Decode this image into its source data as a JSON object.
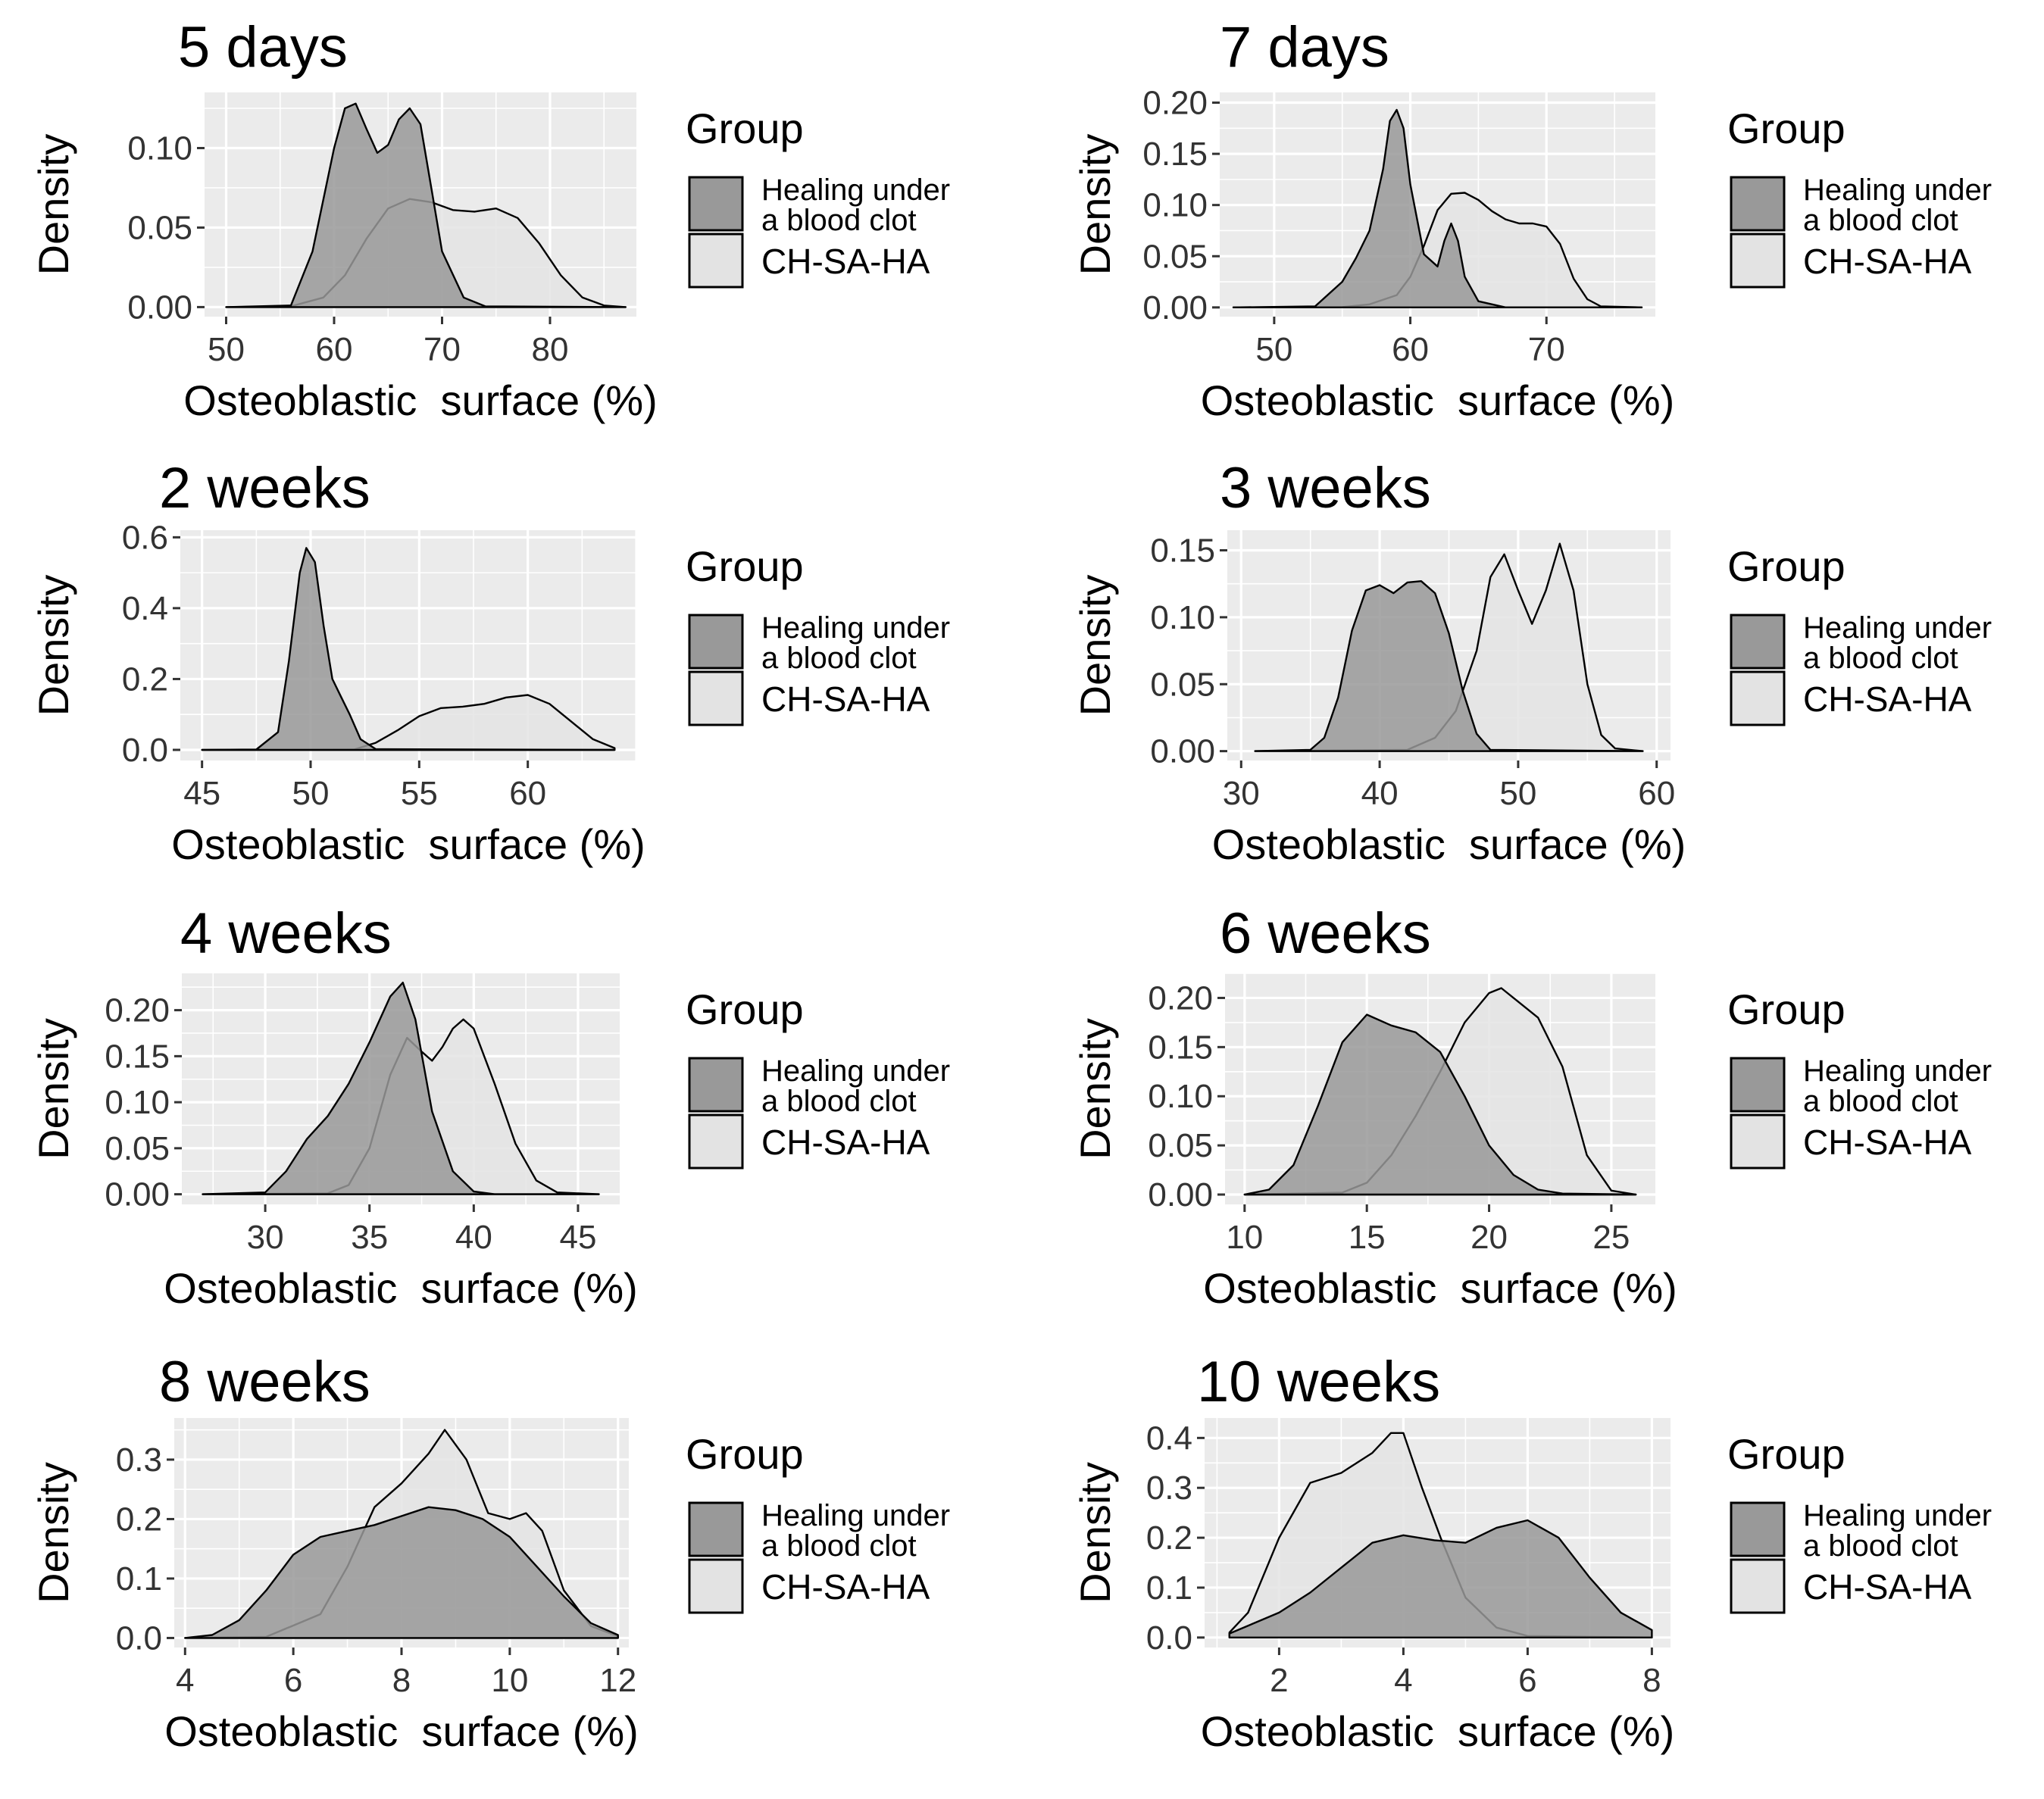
{
  "figure": {
    "legend_title": "Group",
    "group_labels": [
      "Healing under a blood clot",
      "CH-SA-HA"
    ],
    "group_label_lines": [
      [
        "Healing under",
        "a blood clot"
      ],
      [
        "CH-SA-HA"
      ]
    ],
    "colors": {
      "panel_bg": "#ebebeb",
      "grid": "#ffffff",
      "healing_fill": "#999999",
      "chsaha_fill": "#e3e3e3",
      "line": "#000000"
    }
  },
  "chart_data": [
    {
      "type": "area",
      "title": "5 days",
      "xlabel": "Osteoblastic  surface (%)",
      "ylabel": "Density",
      "xlim": [
        48,
        88
      ],
      "ylim": [
        -0.006,
        0.135
      ],
      "xticks": [
        50,
        60,
        70,
        80
      ],
      "xtick_labels": [
        "50",
        "60",
        "70",
        "80"
      ],
      "yticks": [
        0,
        0.05,
        0.1
      ],
      "ytick_labels": [
        "0.00",
        "0.05",
        "0.10"
      ],
      "legend_position": "right",
      "series": [
        {
          "name": "CH-SA-HA",
          "x": [
            50,
            56,
            59,
            61,
            63,
            65,
            67,
            69,
            71,
            73,
            75,
            77,
            79,
            81,
            83,
            85,
            87
          ],
          "y": [
            0,
            0.0005,
            0.006,
            0.02,
            0.043,
            0.062,
            0.068,
            0.066,
            0.061,
            0.06,
            0.062,
            0.056,
            0.04,
            0.02,
            0.006,
            0.001,
            0
          ]
        },
        {
          "name": "Healing under a blood clot",
          "x": [
            50,
            56,
            58,
            60,
            61,
            62,
            63,
            64,
            65,
            66,
            67,
            68,
            69,
            70,
            72,
            74,
            87
          ],
          "y": [
            0,
            0.001,
            0.035,
            0.1,
            0.125,
            0.128,
            0.112,
            0.097,
            0.102,
            0.118,
            0.125,
            0.115,
            0.075,
            0.035,
            0.006,
            0.0005,
            0
          ]
        }
      ]
    },
    {
      "type": "area",
      "title": "7 days",
      "xlabel": "Osteoblastic  surface (%)",
      "ylabel": "Density",
      "xlim": [
        46,
        78
      ],
      "ylim": [
        -0.009,
        0.21
      ],
      "xticks": [
        50,
        60,
        70
      ],
      "xtick_labels": [
        "50",
        "60",
        "70"
      ],
      "yticks": [
        0,
        0.05,
        0.1,
        0.15,
        0.2
      ],
      "ytick_labels": [
        "0.00",
        "0.05",
        "0.10",
        "0.15",
        "0.20"
      ],
      "legend_position": "right",
      "series": [
        {
          "name": "CH-SA-HA",
          "x": [
            47,
            55,
            57,
            59,
            60,
            61,
            62,
            63,
            64,
            65,
            66,
            67,
            68,
            69,
            70,
            71,
            72,
            73,
            74,
            77
          ],
          "y": [
            0,
            0.0003,
            0.003,
            0.012,
            0.03,
            0.06,
            0.095,
            0.111,
            0.112,
            0.105,
            0.094,
            0.086,
            0.082,
            0.082,
            0.079,
            0.062,
            0.028,
            0.008,
            0.001,
            0
          ]
        },
        {
          "name": "Healing under a blood clot",
          "x": [
            47,
            53,
            55,
            56,
            57,
            58,
            58.5,
            59,
            59.5,
            60,
            61,
            62,
            62.5,
            63,
            63.5,
            64,
            65,
            67,
            77
          ],
          "y": [
            0,
            0.001,
            0.025,
            0.048,
            0.075,
            0.135,
            0.182,
            0.193,
            0.175,
            0.12,
            0.052,
            0.04,
            0.065,
            0.082,
            0.065,
            0.03,
            0.006,
            0,
            0
          ]
        }
      ]
    },
    {
      "type": "area",
      "title": "2 weeks",
      "xlabel": "Osteoblastic  surface (%)",
      "ylabel": "Density",
      "xlim": [
        44,
        65
      ],
      "ylim": [
        -0.03,
        0.62
      ],
      "xticks": [
        45,
        50,
        55,
        60
      ],
      "xtick_labels": [
        "45",
        "50",
        "55",
        "60"
      ],
      "yticks": [
        0,
        0.2,
        0.4,
        0.6
      ],
      "ytick_labels": [
        "0.0",
        "0.2",
        "0.4",
        "0.6"
      ],
      "legend_position": "right",
      "series": [
        {
          "name": "CH-SA-HA",
          "x": [
            45,
            52,
            53,
            54,
            55,
            56,
            57,
            58,
            59,
            60,
            61,
            62,
            63,
            64
          ],
          "y": [
            0,
            0.001,
            0.02,
            0.055,
            0.095,
            0.118,
            0.122,
            0.13,
            0.148,
            0.155,
            0.13,
            0.08,
            0.03,
            0.005
          ]
        },
        {
          "name": "Healing under a blood clot",
          "x": [
            45,
            47.5,
            48.5,
            49,
            49.5,
            49.8,
            50.2,
            50.6,
            51,
            51.4,
            51.8,
            52.3,
            53,
            64
          ],
          "y": [
            0,
            0.001,
            0.05,
            0.25,
            0.5,
            0.57,
            0.53,
            0.35,
            0.2,
            0.15,
            0.1,
            0.03,
            0.002,
            0
          ]
        }
      ]
    },
    {
      "type": "area",
      "title": "3 weeks",
      "xlabel": "Osteoblastic  surface (%)",
      "ylabel": "Density",
      "xlim": [
        29,
        61
      ],
      "ylim": [
        -0.007,
        0.165
      ],
      "xticks": [
        30,
        40,
        50,
        60
      ],
      "xtick_labels": [
        "30",
        "40",
        "50",
        "60"
      ],
      "yticks": [
        0,
        0.05,
        0.1,
        0.15
      ],
      "ytick_labels": [
        "0.00",
        "0.05",
        "0.10",
        "0.15"
      ],
      "legend_position": "right",
      "series": [
        {
          "name": "CH-SA-HA",
          "x": [
            31,
            42,
            44,
            45.5,
            47,
            48,
            49,
            50,
            51,
            52,
            53,
            54,
            55,
            56,
            57,
            59
          ],
          "y": [
            0,
            0.001,
            0.01,
            0.03,
            0.075,
            0.13,
            0.147,
            0.12,
            0.095,
            0.12,
            0.155,
            0.12,
            0.05,
            0.012,
            0.002,
            0
          ]
        },
        {
          "name": "Healing under a blood clot",
          "x": [
            31,
            35,
            36,
            37,
            38,
            39,
            40,
            41,
            42,
            43,
            44,
            45,
            46,
            47,
            48,
            59
          ],
          "y": [
            0,
            0.001,
            0.01,
            0.04,
            0.09,
            0.12,
            0.124,
            0.118,
            0.126,
            0.127,
            0.118,
            0.088,
            0.045,
            0.013,
            0.001,
            0
          ]
        }
      ]
    },
    {
      "type": "area",
      "title": "4 weeks",
      "xlabel": "Osteoblastic  surface (%)",
      "ylabel": "Density",
      "xlim": [
        26,
        47
      ],
      "ylim": [
        -0.011,
        0.24
      ],
      "xticks": [
        30,
        35,
        40,
        45
      ],
      "xtick_labels": [
        "30",
        "35",
        "40",
        "45"
      ],
      "yticks": [
        0,
        0.05,
        0.1,
        0.15,
        0.2
      ],
      "ytick_labels": [
        "0.00",
        "0.05",
        "0.10",
        "0.15",
        "0.20"
      ],
      "legend_position": "right",
      "series": [
        {
          "name": "CH-SA-HA",
          "x": [
            27,
            33,
            34,
            35,
            36,
            36.8,
            37.5,
            38,
            38.5,
            39,
            39.5,
            40,
            41,
            42,
            43,
            44,
            46
          ],
          "y": [
            0,
            0.001,
            0.01,
            0.05,
            0.13,
            0.17,
            0.155,
            0.145,
            0.16,
            0.18,
            0.19,
            0.18,
            0.12,
            0.055,
            0.015,
            0.002,
            0
          ]
        },
        {
          "name": "Healing under a blood clot",
          "x": [
            27,
            30,
            31,
            32,
            33,
            34,
            35,
            36,
            36.6,
            37.2,
            38,
            39,
            40,
            41,
            46
          ],
          "y": [
            0,
            0.002,
            0.025,
            0.06,
            0.085,
            0.12,
            0.165,
            0.215,
            0.23,
            0.19,
            0.09,
            0.025,
            0.003,
            0,
            0
          ]
        }
      ]
    },
    {
      "type": "area",
      "title": "6 weeks",
      "xlabel": "Osteoblastic  surface (%)",
      "ylabel": "Density",
      "xlim": [
        9.2,
        26.8
      ],
      "ylim": [
        -0.01,
        0.225
      ],
      "xticks": [
        10,
        15,
        20,
        25
      ],
      "xtick_labels": [
        "10",
        "15",
        "20",
        "25"
      ],
      "yticks": [
        0,
        0.05,
        0.1,
        0.15,
        0.2
      ],
      "ytick_labels": [
        "0.00",
        "0.05",
        "0.10",
        "0.15",
        "0.20"
      ],
      "legend_position": "right",
      "series": [
        {
          "name": "CH-SA-HA",
          "x": [
            10,
            14,
            15,
            16,
            17,
            18,
            19,
            20,
            20.5,
            21,
            22,
            23,
            24,
            25,
            26
          ],
          "y": [
            0,
            0.002,
            0.012,
            0.04,
            0.08,
            0.125,
            0.175,
            0.205,
            0.21,
            0.2,
            0.18,
            0.13,
            0.04,
            0.004,
            0
          ]
        },
        {
          "name": "Healing under a blood clot",
          "x": [
            10,
            11,
            12,
            13,
            14,
            15,
            16,
            17,
            18,
            19,
            20,
            21,
            22,
            23,
            26
          ],
          "y": [
            0,
            0.005,
            0.03,
            0.09,
            0.155,
            0.183,
            0.172,
            0.165,
            0.145,
            0.1,
            0.05,
            0.02,
            0.005,
            0.001,
            0
          ]
        }
      ]
    },
    {
      "type": "area",
      "title": "8 weeks",
      "xlabel": "Osteoblastic  surface (%)",
      "ylabel": "Density",
      "xlim": [
        3.8,
        12.2
      ],
      "ylim": [
        -0.016,
        0.37
      ],
      "xticks": [
        4,
        6,
        8,
        10,
        12
      ],
      "xtick_labels": [
        "4",
        "6",
        "8",
        "10",
        "12"
      ],
      "yticks": [
        0,
        0.1,
        0.2,
        0.3
      ],
      "ytick_labels": [
        "0.0",
        "0.1",
        "0.2",
        "0.3"
      ],
      "legend_position": "right",
      "series": [
        {
          "name": "CH-SA-HA",
          "x": [
            4,
            5.5,
            6.5,
            7,
            7.5,
            8,
            8.5,
            8.8,
            9.2,
            9.6,
            10,
            10.3,
            10.6,
            11,
            11.5,
            12
          ],
          "y": [
            0,
            0.002,
            0.04,
            0.12,
            0.22,
            0.26,
            0.31,
            0.35,
            0.3,
            0.21,
            0.2,
            0.21,
            0.18,
            0.08,
            0.02,
            0.003
          ]
        },
        {
          "name": "Healing under a blood clot",
          "x": [
            4,
            4.5,
            5,
            5.5,
            6,
            6.5,
            7,
            7.5,
            8,
            8.5,
            9,
            9.5,
            10,
            10.5,
            11,
            11.5,
            12
          ],
          "y": [
            0,
            0.005,
            0.03,
            0.08,
            0.14,
            0.17,
            0.18,
            0.19,
            0.205,
            0.22,
            0.215,
            0.2,
            0.17,
            0.12,
            0.07,
            0.025,
            0.005
          ]
        }
      ]
    },
    {
      "type": "area",
      "title": "10 weeks",
      "xlabel": "Osteoblastic  surface (%)",
      "ylabel": "Density",
      "xlim": [
        0.8,
        8.3
      ],
      "ylim": [
        -0.02,
        0.44
      ],
      "xticks": [
        2,
        4,
        6,
        8
      ],
      "xtick_labels": [
        "2",
        "4",
        "6",
        "8"
      ],
      "yticks": [
        0,
        0.1,
        0.2,
        0.3,
        0.4
      ],
      "ytick_labels": [
        "0.0",
        "0.1",
        "0.2",
        "0.3",
        "0.4"
      ],
      "legend_position": "right",
      "series": [
        {
          "name": "CH-SA-HA",
          "x": [
            1.2,
            1.5,
            2,
            2.5,
            3,
            3.5,
            3.8,
            4,
            4.3,
            4.6,
            5,
            5.5,
            6,
            8
          ],
          "y": [
            0.01,
            0.05,
            0.2,
            0.31,
            0.33,
            0.37,
            0.41,
            0.41,
            0.3,
            0.2,
            0.08,
            0.02,
            0.003,
            0
          ]
        },
        {
          "name": "Healing under a blood clot",
          "x": [
            1.2,
            2,
            2.5,
            3,
            3.5,
            4,
            4.5,
            5,
            5.5,
            6,
            6.5,
            7,
            7.5,
            8
          ],
          "y": [
            0.008,
            0.05,
            0.09,
            0.14,
            0.19,
            0.205,
            0.195,
            0.19,
            0.22,
            0.235,
            0.2,
            0.12,
            0.05,
            0.015
          ]
        }
      ]
    }
  ]
}
